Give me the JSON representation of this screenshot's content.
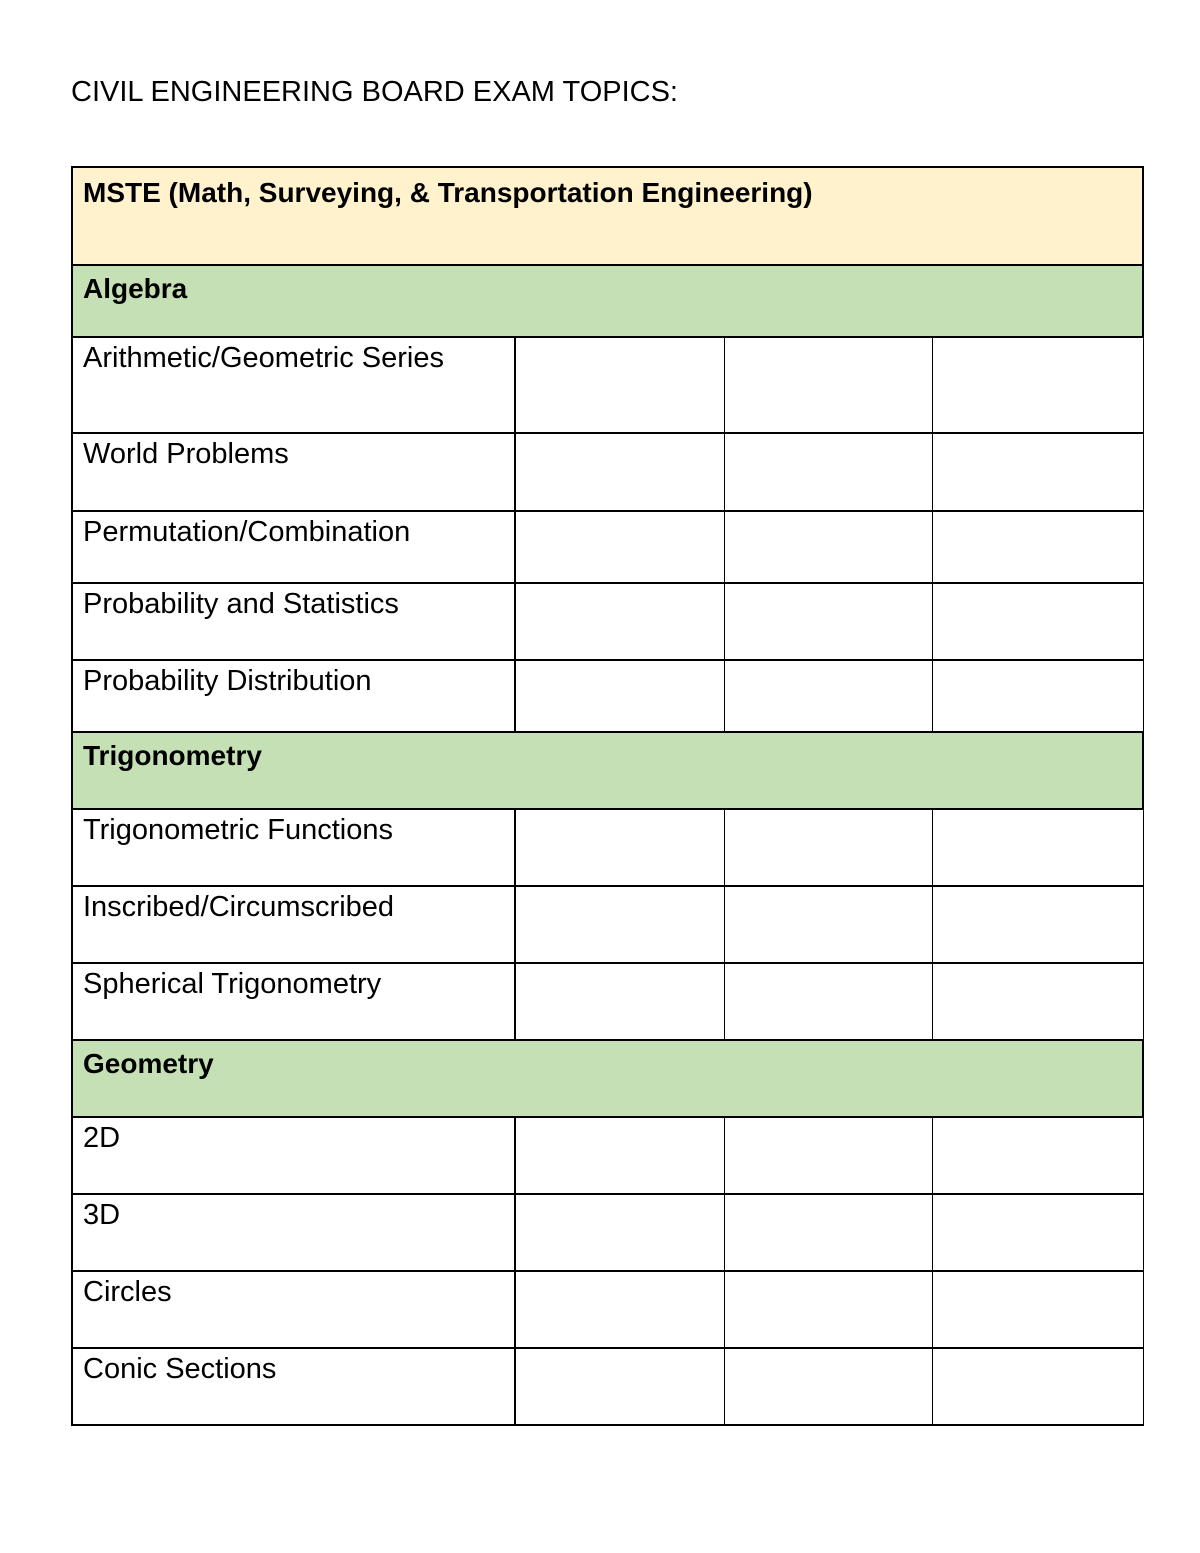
{
  "title": "CIVIL ENGINEERING BOARD EXAM TOPICS:",
  "colors": {
    "main_header": "#fff2cc",
    "section_header": "#c5e0b4"
  },
  "table": {
    "main_header": "MSTE (Math, Surveying, & Transportation Engineering)",
    "sections": [
      {
        "label": "Algebra",
        "topics": [
          "Arithmetic/Geometric Series",
          "World Problems",
          "Permutation/Combination",
          "Probability and Statistics",
          "Probability Distribution"
        ]
      },
      {
        "label": "Trigonometry",
        "topics": [
          "Trigonometric Functions",
          "Inscribed/Circumscribed",
          "Spherical Trigonometry"
        ]
      },
      {
        "label": "Geometry",
        "topics": [
          "2D",
          "3D",
          "Circles",
          "Conic Sections"
        ]
      }
    ]
  }
}
